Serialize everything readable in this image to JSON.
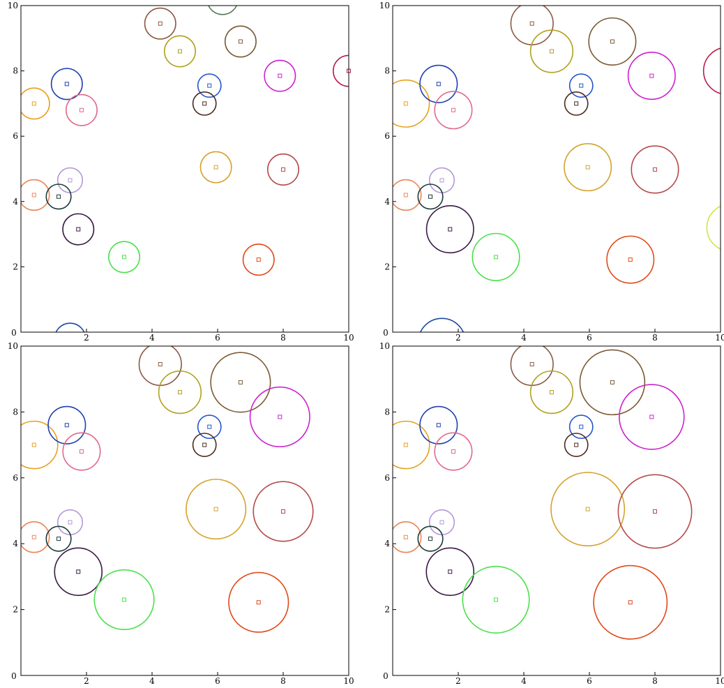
{
  "chart_data": [
    {
      "type": "scatter",
      "title": "",
      "xlabel": "",
      "ylabel": "",
      "xlim": [
        0,
        10
      ],
      "ylim": [
        0,
        10
      ],
      "xticks": [
        2,
        4,
        6,
        8,
        10
      ],
      "yticks": [
        2,
        4,
        6,
        8,
        10
      ],
      "origin_label": "0",
      "grid": false,
      "growth": 0.35,
      "points": [
        {
          "x": 0.4,
          "y": 7.0,
          "color": "#e6a11e"
        },
        {
          "x": 1.4,
          "y": 7.6,
          "color": "#1f3fb0"
        },
        {
          "x": 1.85,
          "y": 6.8,
          "color": "#e06a8a"
        },
        {
          "x": 4.25,
          "y": 9.45,
          "color": "#8a5a44"
        },
        {
          "x": 4.85,
          "y": 8.6,
          "color": "#b0a01e"
        },
        {
          "x": 6.15,
          "y": 10.2,
          "color": "#5a7a5a"
        },
        {
          "x": 6.7,
          "y": 8.9,
          "color": "#7a5a34"
        },
        {
          "x": 7.9,
          "y": 7.85,
          "color": "#cc22cc"
        },
        {
          "x": 5.75,
          "y": 7.55,
          "color": "#2255cc"
        },
        {
          "x": 5.6,
          "y": 7.0,
          "color": "#4a2a1e"
        },
        {
          "x": 10.0,
          "y": 8.0,
          "color": "#b81e4a"
        },
        {
          "x": 1.5,
          "y": 4.65,
          "color": "#b497d6"
        },
        {
          "x": 0.4,
          "y": 4.2,
          "color": "#e8885a"
        },
        {
          "x": 1.15,
          "y": 4.15,
          "color": "#1e3a3a"
        },
        {
          "x": 1.75,
          "y": 3.15,
          "color": "#3a1a44"
        },
        {
          "x": 5.95,
          "y": 5.05,
          "color": "#d4a22a"
        },
        {
          "x": 8.0,
          "y": 4.98,
          "color": "#b44a4a"
        },
        {
          "x": 3.15,
          "y": 2.3,
          "color": "#4ae04a"
        },
        {
          "x": 7.25,
          "y": 2.22,
          "color": "#e04a1a"
        },
        {
          "x": 1.5,
          "y": -0.2,
          "color": "#1e4aa0"
        }
      ]
    },
    {
      "type": "scatter",
      "title": "",
      "xlabel": "",
      "ylabel": "",
      "xlim": [
        0,
        10
      ],
      "ylim": [
        0,
        10
      ],
      "xticks": [
        2,
        4,
        6,
        8,
        10
      ],
      "yticks": [
        2,
        4,
        6,
        8,
        10
      ],
      "origin_label": "0",
      "grid": false,
      "growth": 1.05,
      "points": [
        {
          "x": 0.4,
          "y": 7.0,
          "color": "#e6a11e"
        },
        {
          "x": 1.4,
          "y": 7.6,
          "color": "#1f3fb0"
        },
        {
          "x": 1.85,
          "y": 6.8,
          "color": "#e06a8a"
        },
        {
          "x": 4.25,
          "y": 9.45,
          "color": "#8a5a44"
        },
        {
          "x": 4.85,
          "y": 8.6,
          "color": "#b0a01e"
        },
        {
          "x": 6.7,
          "y": 8.9,
          "color": "#7a5a34"
        },
        {
          "x": 7.9,
          "y": 7.85,
          "color": "#cc22cc"
        },
        {
          "x": 5.75,
          "y": 7.55,
          "color": "#2255cc"
        },
        {
          "x": 5.6,
          "y": 7.0,
          "color": "#4a2a1e"
        },
        {
          "x": 10.2,
          "y": 8.0,
          "color": "#b81e4a"
        },
        {
          "x": 1.5,
          "y": 4.65,
          "color": "#b497d6"
        },
        {
          "x": 0.4,
          "y": 4.2,
          "color": "#e8885a"
        },
        {
          "x": 1.15,
          "y": 4.15,
          "color": "#1e3a3a"
        },
        {
          "x": 1.75,
          "y": 3.15,
          "color": "#3a1a44"
        },
        {
          "x": 5.95,
          "y": 5.05,
          "color": "#d4a22a"
        },
        {
          "x": 8.0,
          "y": 4.98,
          "color": "#b44a4a"
        },
        {
          "x": 3.15,
          "y": 2.3,
          "color": "#4ae04a"
        },
        {
          "x": 7.25,
          "y": 2.22,
          "color": "#e04a1a"
        },
        {
          "x": 10.3,
          "y": 3.2,
          "color": "#c8e84a"
        },
        {
          "x": 1.5,
          "y": -0.3,
          "color": "#1e4aa0"
        }
      ]
    },
    {
      "type": "scatter",
      "title": "",
      "xlabel": "",
      "ylabel": "",
      "xlim": [
        0,
        10
      ],
      "ylim": [
        0,
        10
      ],
      "xticks": [
        2,
        4,
        6,
        8,
        10
      ],
      "yticks": [
        2,
        4,
        6,
        8,
        10
      ],
      "origin_label": "0",
      "grid": false,
      "growth": 1.6,
      "points": [
        {
          "x": 0.4,
          "y": 7.0,
          "color": "#e6a11e"
        },
        {
          "x": 1.4,
          "y": 7.6,
          "color": "#1f3fb0"
        },
        {
          "x": 1.85,
          "y": 6.8,
          "color": "#e06a8a"
        },
        {
          "x": 4.25,
          "y": 9.45,
          "color": "#8a5a44"
        },
        {
          "x": 4.85,
          "y": 8.6,
          "color": "#b0a01e"
        },
        {
          "x": 6.7,
          "y": 8.9,
          "color": "#7a5a34"
        },
        {
          "x": 7.9,
          "y": 7.85,
          "color": "#cc22cc"
        },
        {
          "x": 5.75,
          "y": 7.55,
          "color": "#2255cc"
        },
        {
          "x": 5.6,
          "y": 7.0,
          "color": "#4a2a1e"
        },
        {
          "x": 1.5,
          "y": 4.65,
          "color": "#b497d6"
        },
        {
          "x": 0.4,
          "y": 4.2,
          "color": "#e8885a"
        },
        {
          "x": 1.15,
          "y": 4.15,
          "color": "#1e3a3a"
        },
        {
          "x": 1.75,
          "y": 3.15,
          "color": "#3a1a44"
        },
        {
          "x": 5.95,
          "y": 5.05,
          "color": "#d4a22a"
        },
        {
          "x": 8.0,
          "y": 4.98,
          "color": "#b44a4a"
        },
        {
          "x": 3.15,
          "y": 2.3,
          "color": "#4ae04a"
        },
        {
          "x": 7.25,
          "y": 2.22,
          "color": "#e04a1a"
        }
      ]
    },
    {
      "type": "scatter",
      "title": "",
      "xlabel": "",
      "ylabel": "",
      "xlim": [
        0,
        10
      ],
      "ylim": [
        0,
        10
      ],
      "xticks": [
        2,
        4,
        6,
        8,
        10
      ],
      "yticks": [
        2,
        4,
        6,
        8,
        10
      ],
      "origin_label": "0",
      "grid": false,
      "growth": 2.2,
      "points": [
        {
          "x": 0.4,
          "y": 7.0,
          "color": "#e6a11e"
        },
        {
          "x": 1.4,
          "y": 7.6,
          "color": "#1f3fb0"
        },
        {
          "x": 1.85,
          "y": 6.8,
          "color": "#e06a8a"
        },
        {
          "x": 4.25,
          "y": 9.45,
          "color": "#8a5a44"
        },
        {
          "x": 4.85,
          "y": 8.6,
          "color": "#b0a01e"
        },
        {
          "x": 6.7,
          "y": 8.9,
          "color": "#7a5a34"
        },
        {
          "x": 7.9,
          "y": 7.85,
          "color": "#cc22cc"
        },
        {
          "x": 5.75,
          "y": 7.55,
          "color": "#2255cc"
        },
        {
          "x": 5.6,
          "y": 7.0,
          "color": "#4a2a1e"
        },
        {
          "x": 1.5,
          "y": 4.65,
          "color": "#b497d6"
        },
        {
          "x": 0.4,
          "y": 4.2,
          "color": "#e8885a"
        },
        {
          "x": 1.15,
          "y": 4.15,
          "color": "#1e3a3a"
        },
        {
          "x": 1.75,
          "y": 3.15,
          "color": "#3a1a44"
        },
        {
          "x": 5.95,
          "y": 5.05,
          "color": "#d4a22a"
        },
        {
          "x": 8.0,
          "y": 4.98,
          "color": "#b44a4a"
        },
        {
          "x": 3.15,
          "y": 2.3,
          "color": "#4ae04a"
        },
        {
          "x": 7.25,
          "y": 2.22,
          "color": "#e04a1a"
        }
      ]
    }
  ]
}
